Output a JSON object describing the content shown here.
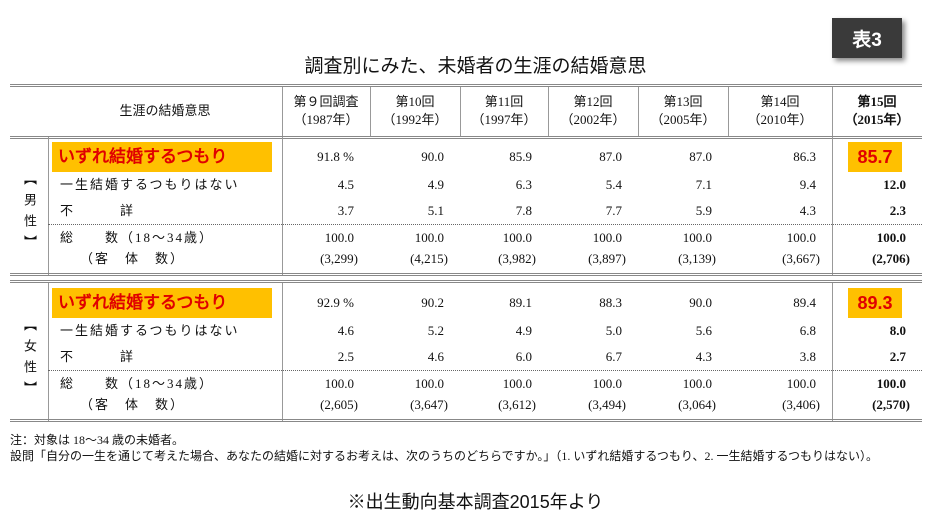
{
  "badge": "表3",
  "title": "調査別にみた、未婚者の生涯の結婚意思",
  "table": {
    "corner": "生涯の結婚意思",
    "columns": [
      {
        "label": "第９回調査",
        "year": "（1987年）"
      },
      {
        "label": "第10回",
        "year": "（1992年）"
      },
      {
        "label": "第11回",
        "year": "（1997年）"
      },
      {
        "label": "第12回",
        "year": "（2002年）"
      },
      {
        "label": "第13回",
        "year": "（2005年）"
      },
      {
        "label": "第14回",
        "year": "（2010年）"
      },
      {
        "label": "第15回",
        "year": "（2015年）"
      }
    ],
    "sections": [
      {
        "label": "【男性】",
        "rows": [
          {
            "label": "いずれ結婚するつもり",
            "values": [
              "91.8 %",
              "90.0",
              "85.9",
              "87.0",
              "87.0",
              "86.3",
              "85.7"
            ]
          },
          {
            "label": "一生結婚するつもりはない",
            "values": [
              "4.5",
              "4.9",
              "6.3",
              "5.4",
              "7.1",
              "9.4",
              "12.0"
            ]
          },
          {
            "label": "不　　　詳",
            "values": [
              "3.7",
              "5.1",
              "7.8",
              "7.7",
              "5.9",
              "4.3",
              "2.3"
            ]
          },
          {
            "label": "総　　数（18～34歳）",
            "values": [
              "100.0",
              "100.0",
              "100.0",
              "100.0",
              "100.0",
              "100.0",
              "100.0"
            ],
            "sublabel": "（客　体　数）",
            "subvalues": [
              "(3,299)",
              "(4,215)",
              "(3,982)",
              "(3,897)",
              "(3,139)",
              "(3,667)",
              "(2,706)"
            ]
          }
        ]
      },
      {
        "label": "【女性】",
        "rows": [
          {
            "label": "いずれ結婚するつもり",
            "values": [
              "92.9 %",
              "90.2",
              "89.1",
              "88.3",
              "90.0",
              "89.4",
              "89.3"
            ]
          },
          {
            "label": "一生結婚するつもりはない",
            "values": [
              "4.6",
              "5.2",
              "4.9",
              "5.0",
              "5.6",
              "6.8",
              "8.0"
            ]
          },
          {
            "label": "不　　　詳",
            "values": [
              "2.5",
              "4.6",
              "6.0",
              "6.7",
              "4.3",
              "3.8",
              "2.7"
            ]
          },
          {
            "label": "総　　数（18～34歳）",
            "values": [
              "100.0",
              "100.0",
              "100.0",
              "100.0",
              "100.0",
              "100.0",
              "100.0"
            ],
            "sublabel": "（客　体　数）",
            "subvalues": [
              "(2,605)",
              "(3,647)",
              "(3,612)",
              "(3,494)",
              "(3,064)",
              "(3,406)",
              "(2,570)"
            ]
          }
        ]
      }
    ]
  },
  "notes": [
    "注：対象は 18～34 歳の未婚者。",
    "設問「自分の一生を通じて考えた場合、あなたの結婚に対するお考えは、次のうちのどちらですか。」（1. いずれ結婚するつもり、2. 一生結婚するつもりはない）。"
  ],
  "source": "※出生動向基本調査2015年より"
}
